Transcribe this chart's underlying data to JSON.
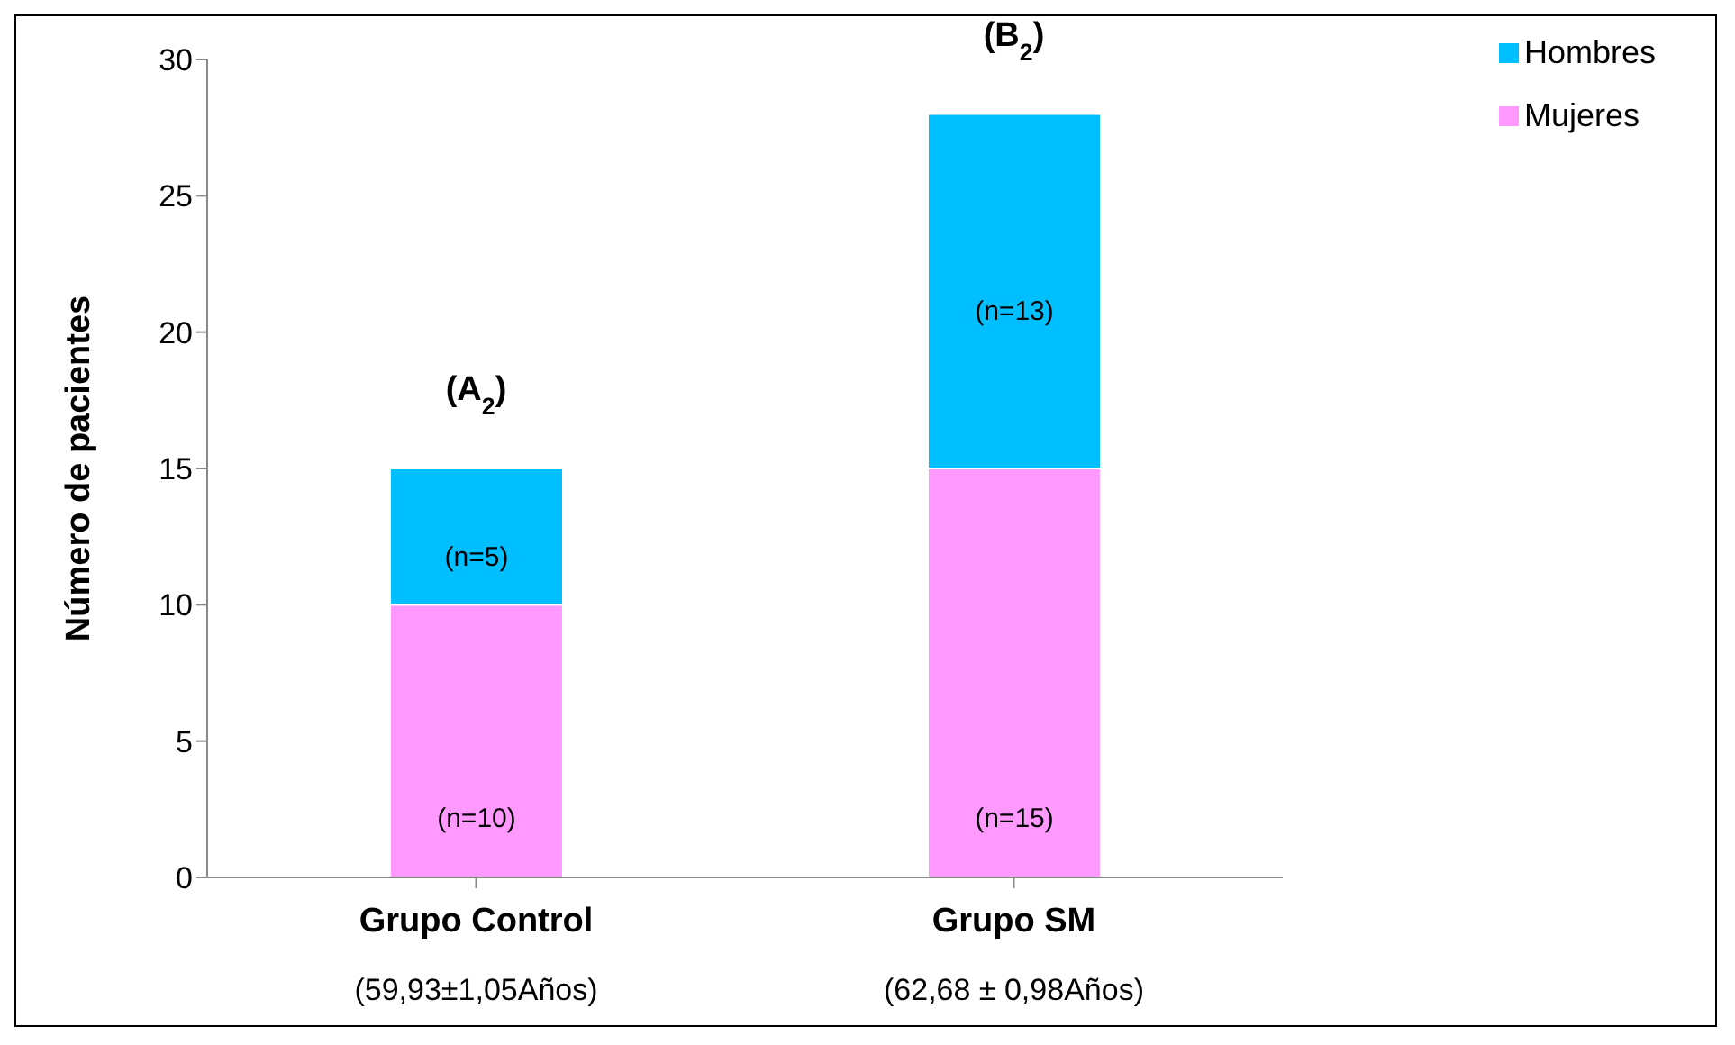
{
  "chart_data": {
    "type": "bar",
    "stacked": true,
    "categories": [
      "Grupo Control",
      "Grupo SM"
    ],
    "ylabel": "Número de pacientes",
    "ylim": [
      0,
      30
    ],
    "yticks": [
      0,
      5,
      10,
      15,
      20,
      25,
      30
    ],
    "grid": false,
    "legend": "top right",
    "series": [
      {
        "name": "Mujeres",
        "color": "#ff99ff",
        "values": [
          10,
          15
        ],
        "value_labels": [
          "(n=10)",
          "(n=15)"
        ]
      },
      {
        "name": "Hombres",
        "color": "#00bfff",
        "values": [
          5,
          13
        ],
        "value_labels": [
          "(n=5)",
          "(n=13)"
        ]
      }
    ],
    "annotations": [
      "(A$_{2}$)",
      "(B$_{2}$)",
      "(59,93±1,05Años)",
      "(62,68 ± 0,98Años)"
    ]
  }
}
